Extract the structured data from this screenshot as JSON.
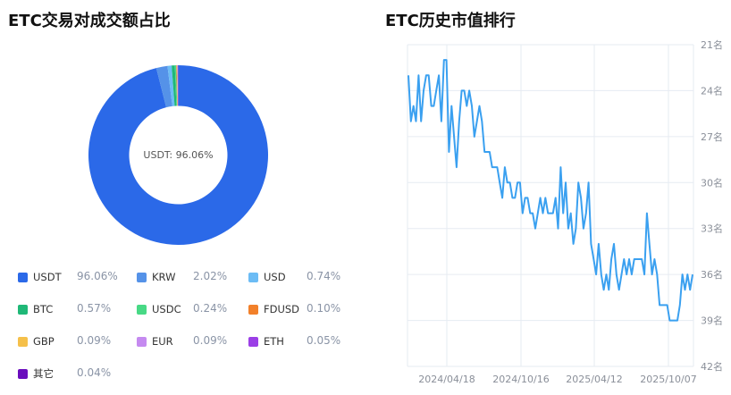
{
  "left_panel": {
    "title": "ETC交易对成交额占比",
    "center_label": "USDT: 96.06%",
    "legend": [
      {
        "name": "USDT",
        "value": "96.06%",
        "color": "#2b69e8"
      },
      {
        "name": "KRW",
        "value": "2.02%",
        "color": "#5592e8"
      },
      {
        "name": "USD",
        "value": "0.74%",
        "color": "#6cbcf5"
      },
      {
        "name": "BTC",
        "value": "0.57%",
        "color": "#1fb877"
      },
      {
        "name": "USDC",
        "value": "0.24%",
        "color": "#48d985"
      },
      {
        "name": "FDUSD",
        "value": "0.10%",
        "color": "#f2802a"
      },
      {
        "name": "GBP",
        "value": "0.09%",
        "color": "#f5c04a"
      },
      {
        "name": "EUR",
        "value": "0.09%",
        "color": "#c58af0"
      },
      {
        "name": "ETH",
        "value": "0.05%",
        "color": "#9b3fe6"
      },
      {
        "name": "其它",
        "value": "0.04%",
        "color": "#6a0dbd"
      }
    ]
  },
  "right_panel": {
    "title": "ETC历史市值排行",
    "y_ticks": [
      "21名",
      "24名",
      "27名",
      "30名",
      "33名",
      "36名",
      "39名",
      "42名"
    ],
    "x_ticks": [
      "2024/04/18",
      "2024/10/16",
      "2025/04/12",
      "2025/10/07"
    ],
    "line_color": "#3aa0f0"
  },
  "chart_data": [
    {
      "type": "pie",
      "title": "ETC交易对成交额占比",
      "subtype": "donut",
      "center_text": "USDT: 96.06%",
      "categories": [
        "USDT",
        "KRW",
        "USD",
        "BTC",
        "USDC",
        "FDUSD",
        "GBP",
        "EUR",
        "ETH",
        "其它"
      ],
      "values": [
        96.06,
        2.02,
        0.74,
        0.57,
        0.24,
        0.1,
        0.09,
        0.09,
        0.05,
        0.04
      ],
      "colors": [
        "#2b69e8",
        "#5592e8",
        "#6cbcf5",
        "#1fb877",
        "#48d985",
        "#f2802a",
        "#f5c04a",
        "#c58af0",
        "#9b3fe6",
        "#6a0dbd"
      ],
      "legend_position": "bottom"
    },
    {
      "type": "line",
      "title": "ETC历史市值排行",
      "xlabel": "",
      "ylabel": "",
      "y_axis_position": "right",
      "y_inverted": true,
      "ylim": [
        21,
        42
      ],
      "y_ticks": [
        21,
        24,
        27,
        30,
        33,
        36,
        39,
        42
      ],
      "y_tick_suffix": "名",
      "x_ticks": [
        "2024/04/18",
        "2024/10/16",
        "2025/04/12",
        "2025/10/07"
      ],
      "grid": true,
      "series": [
        {
          "name": "市值排行",
          "values": [
            23,
            26,
            25,
            26,
            23,
            26,
            24,
            23,
            23,
            25,
            25,
            24,
            23,
            26,
            22,
            22,
            28,
            25,
            27,
            29,
            26,
            24,
            24,
            25,
            24,
            25,
            27,
            26,
            25,
            26,
            28,
            28,
            28,
            29,
            29,
            29,
            30,
            31,
            29,
            30,
            30,
            31,
            31,
            30,
            30,
            32,
            31,
            31,
            32,
            32,
            33,
            32,
            31,
            32,
            31,
            32,
            32,
            32,
            31,
            33,
            29,
            32,
            30,
            33,
            32,
            34,
            33,
            30,
            31,
            33,
            32,
            30,
            34,
            35,
            36,
            34,
            36,
            37,
            36,
            37,
            35,
            34,
            36,
            37,
            36,
            35,
            36,
            35,
            36,
            35,
            35,
            35,
            35,
            36,
            32,
            34,
            36,
            35,
            36,
            38,
            38,
            38,
            38,
            39,
            39,
            39,
            39,
            38,
            36,
            37,
            36,
            37,
            36
          ]
        }
      ]
    }
  ]
}
